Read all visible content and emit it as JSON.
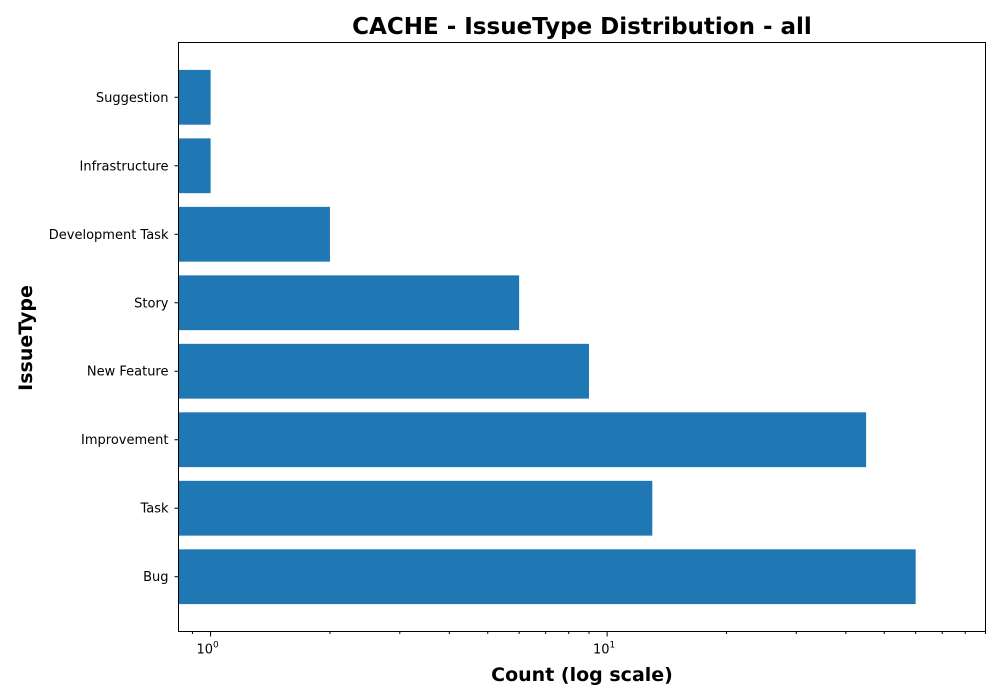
{
  "chart_data": {
    "type": "bar",
    "orientation": "horizontal",
    "title": "CACHE - IssueType Distribution - all",
    "xlabel": "Count (log scale)",
    "ylabel": "IssueType",
    "xscale": "log",
    "xlim": [
      0.83,
      90
    ],
    "xticks": [
      {
        "value": 1,
        "base": "10",
        "exp": "0"
      },
      {
        "value": 10,
        "base": "10",
        "exp": "1"
      }
    ],
    "categories": [
      "Bug",
      "Task",
      "Improvement",
      "New Feature",
      "Story",
      "Development Task",
      "Infrastructure",
      "Suggestion"
    ],
    "values": [
      60,
      13,
      45,
      9,
      6,
      2,
      1,
      1
    ],
    "color": "#1f77b4",
    "grid": false,
    "legend": "none"
  }
}
